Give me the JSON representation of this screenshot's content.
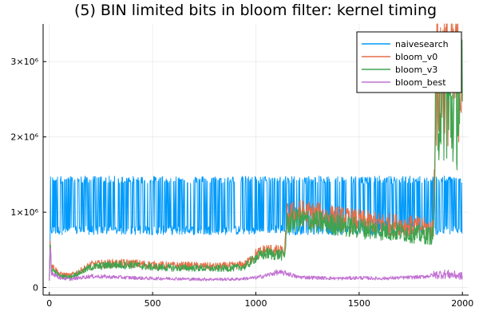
{
  "chart_data": {
    "type": "line",
    "title": "(5) BIN limited bits in bloom filter: kernel timing",
    "xlabel": "",
    "ylabel": "",
    "xlim": [
      -30,
      2030
    ],
    "ylim": [
      -100000,
      3500000
    ],
    "x_ticks": [
      {
        "value": 0,
        "label": "0"
      },
      {
        "value": 500,
        "label": "500"
      },
      {
        "value": 1000,
        "label": "1000"
      },
      {
        "value": 1500,
        "label": "1500"
      },
      {
        "value": 2000,
        "label": "2000"
      }
    ],
    "y_ticks": [
      {
        "value": 0,
        "label": "0"
      },
      {
        "value": 1000000,
        "label": "1×10⁶"
      },
      {
        "value": 2000000,
        "label": "2×10⁶"
      },
      {
        "value": 3000000,
        "label": "3×10⁶"
      }
    ],
    "grid": true,
    "legend_position": "top-right",
    "series": [
      {
        "name": "naivesearch",
        "color": "#009AFA",
        "x": [
          0,
          5,
          10,
          50,
          100,
          200,
          300,
          400,
          500,
          600,
          700,
          800,
          900,
          1000,
          1050,
          1100,
          1150,
          1200,
          1300,
          1400,
          1500,
          1600,
          1700,
          1800,
          1850,
          1900,
          1950,
          2000
        ],
        "values": [
          150000,
          700000,
          1200000,
          1050000,
          1000000,
          1050000,
          1000000,
          1020000,
          1000000,
          1040000,
          1020000,
          1000000,
          1030000,
          1000000,
          720000,
          740000,
          1050000,
          1000000,
          1050000,
          1000000,
          1020000,
          1000000,
          1040000,
          1020000,
          1000000,
          1050000,
          1000000,
          1050000
        ]
      },
      {
        "name": "bloom_v0",
        "color": "#E36F47",
        "x": [
          0,
          5,
          10,
          50,
          100,
          150,
          200,
          300,
          400,
          500,
          600,
          700,
          800,
          900,
          950,
          1000,
          1050,
          1100,
          1140,
          1150,
          1200,
          1300,
          1400,
          1500,
          1600,
          1700,
          1800,
          1860,
          1870,
          1900,
          1950,
          2000
        ],
        "values": [
          100000,
          650000,
          300000,
          180000,
          160000,
          220000,
          300000,
          320000,
          320000,
          300000,
          290000,
          290000,
          280000,
          290000,
          310000,
          440000,
          500000,
          480000,
          470000,
          950000,
          1000000,
          960000,
          920000,
          880000,
          850000,
          830000,
          800000,
          780000,
          2700000,
          2900000,
          2800000,
          3000000
        ]
      },
      {
        "name": "bloom_v3",
        "color": "#3EA44E",
        "x": [
          0,
          5,
          10,
          50,
          100,
          150,
          200,
          300,
          400,
          500,
          600,
          700,
          800,
          900,
          950,
          1000,
          1050,
          1100,
          1140,
          1150,
          1200,
          1300,
          1400,
          1500,
          1600,
          1700,
          1800,
          1860,
          1870,
          1900,
          1950,
          2000
        ],
        "values": [
          100000,
          600000,
          250000,
          150000,
          140000,
          200000,
          270000,
          300000,
          300000,
          270000,
          260000,
          260000,
          250000,
          260000,
          280000,
          400000,
          450000,
          440000,
          430000,
          850000,
          900000,
          870000,
          830000,
          790000,
          760000,
          740000,
          700000,
          690000,
          2400000,
          2600000,
          2300000,
          2500000
        ]
      },
      {
        "name": "bloom_best",
        "color": "#C271D2",
        "x": [
          0,
          5,
          10,
          50,
          100,
          200,
          300,
          400,
          500,
          600,
          700,
          800,
          900,
          1000,
          1050,
          1100,
          1150,
          1200,
          1300,
          1400,
          1500,
          1600,
          1700,
          1800,
          1850,
          1900,
          1950,
          2000
        ],
        "values": [
          80000,
          600000,
          200000,
          130000,
          110000,
          150000,
          140000,
          130000,
          120000,
          120000,
          110000,
          110000,
          110000,
          130000,
          160000,
          200000,
          190000,
          140000,
          130000,
          120000,
          130000,
          120000,
          130000,
          140000,
          160000,
          180000,
          170000,
          150000
        ]
      }
    ]
  }
}
